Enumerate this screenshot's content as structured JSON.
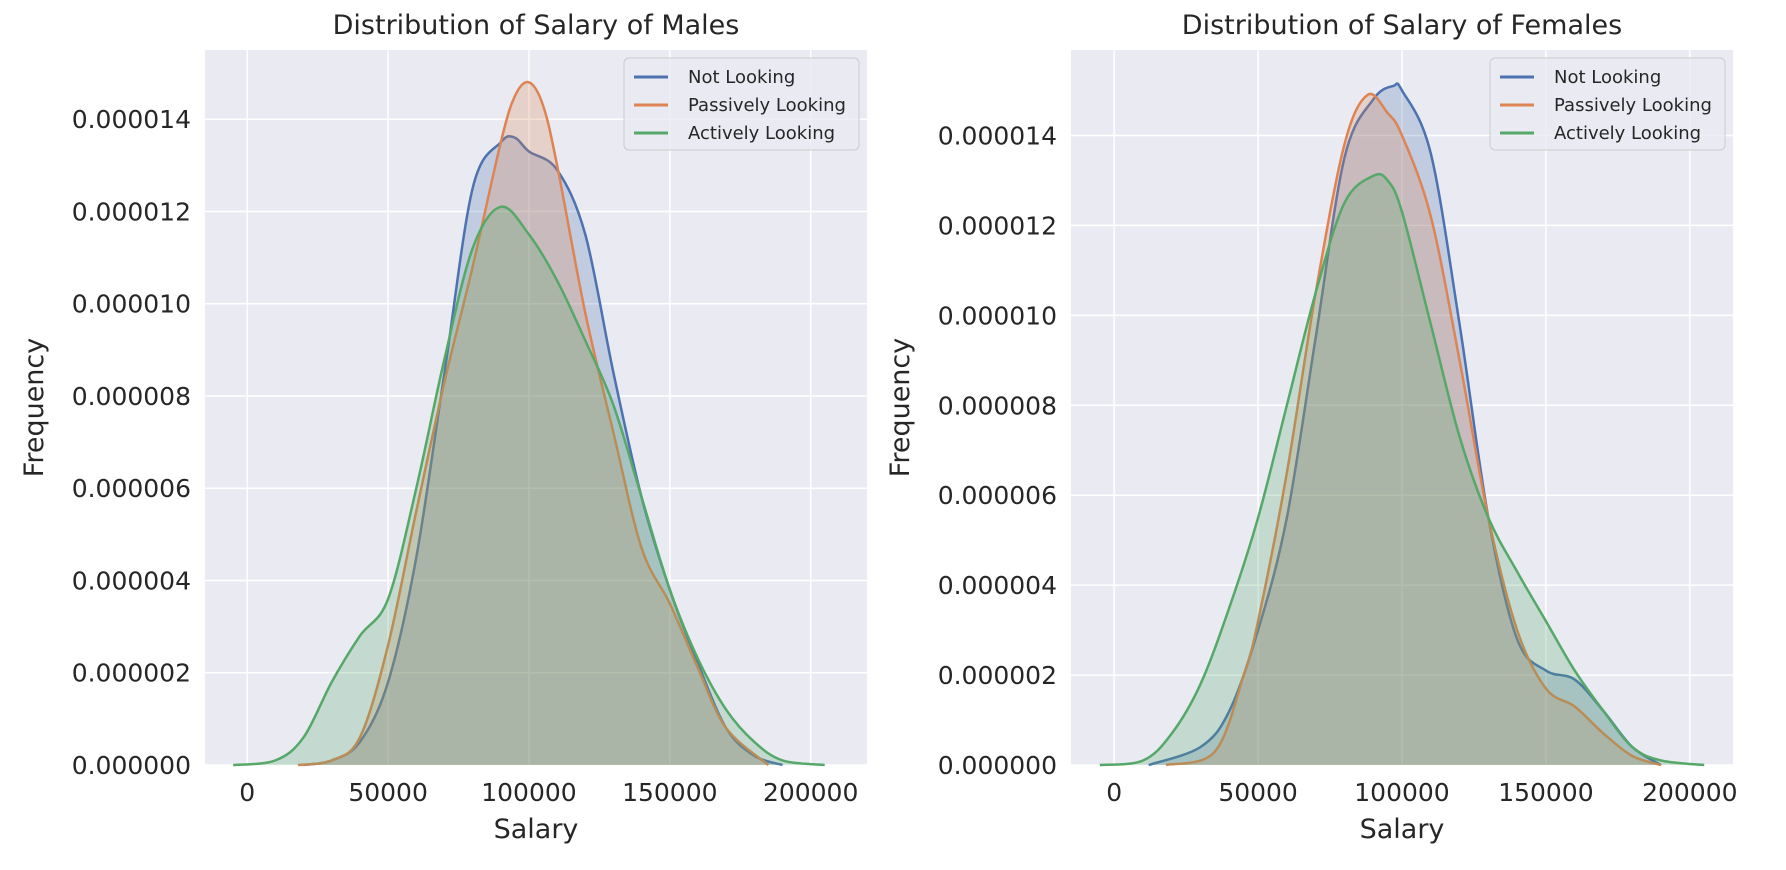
{
  "figure": {
    "background": "#ffffff",
    "axes_background": "#eaeaf2",
    "grid_color": "#ffffff"
  },
  "chart_data": [
    {
      "type": "area",
      "title": "Distribution of Salary of Males",
      "xlabel": "Salary",
      "ylabel": "Frequency",
      "xlim": [
        -15000,
        220000
      ],
      "ylim": [
        0,
        1.55e-05
      ],
      "xticks": [
        0,
        50000,
        100000,
        150000,
        200000
      ],
      "xtick_labels": [
        "0",
        "50000",
        "100000",
        "150000",
        "200000"
      ],
      "yticks": [
        0,
        2e-06,
        4e-06,
        6e-06,
        8e-06,
        1e-05,
        1.2e-05,
        1.4e-05
      ],
      "ytick_labels": [
        "0.000000",
        "0.000002",
        "0.000004",
        "0.000006",
        "0.000008",
        "0.000010",
        "0.000012",
        "0.000014"
      ],
      "grid": true,
      "legend_position": "top-right",
      "series": [
        {
          "name": "Not Looking",
          "color": "#4c72b0",
          "x": [
            20000,
            30000,
            40000,
            50000,
            60000,
            70000,
            80000,
            90000,
            95000,
            100000,
            110000,
            120000,
            130000,
            140000,
            150000,
            160000,
            170000,
            180000,
            190000
          ],
          "y": [
            0,
            1e-07,
            5e-07,
            1.8e-06,
            4.5e-06,
            8.5e-06,
            1.25e-05,
            1.35e-05,
            1.36e-05,
            1.33e-05,
            1.29e-05,
            1.15e-05,
            8.5e-06,
            5.8e-06,
            3.8e-06,
            2.2e-06,
            8e-07,
            2e-07,
            0
          ]
        },
        {
          "name": "Passively Looking",
          "color": "#dd8452",
          "x": [
            18000,
            30000,
            40000,
            50000,
            60000,
            70000,
            80000,
            90000,
            95000,
            100000,
            105000,
            110000,
            120000,
            130000,
            140000,
            150000,
            160000,
            170000,
            185000
          ],
          "y": [
            0,
            1e-07,
            6e-07,
            2.6e-06,
            5.5e-06,
            8.3e-06,
            1.08e-05,
            1.35e-05,
            1.45e-05,
            1.48e-05,
            1.43e-05,
            1.3e-05,
            9.8e-06,
            7.2e-06,
            4.7e-06,
            3.5e-06,
            2.1e-06,
            8e-07,
            0
          ]
        },
        {
          "name": "Actively Looking",
          "color": "#55a868",
          "x": [
            -5000,
            10000,
            20000,
            30000,
            40000,
            50000,
            60000,
            70000,
            80000,
            90000,
            100000,
            110000,
            120000,
            130000,
            140000,
            150000,
            160000,
            170000,
            180000,
            190000,
            205000
          ],
          "y": [
            0,
            1e-07,
            6e-07,
            1.8e-06,
            2.8e-06,
            3.6e-06,
            6e-06,
            8.8e-06,
            1.12e-05,
            1.21e-05,
            1.15e-05,
            1.05e-05,
            9.2e-06,
            7.8e-06,
            5.8e-06,
            3.8e-06,
            2.3e-06,
            1.2e-06,
            5e-07,
            1e-07,
            0
          ]
        }
      ]
    },
    {
      "type": "area",
      "title": "Distribution of Salary of Females",
      "xlabel": "Salary",
      "ylabel": "Frequency",
      "xlim": [
        -15000,
        215000
      ],
      "ylim": [
        0,
        1.59e-05
      ],
      "xticks": [
        0,
        50000,
        100000,
        150000,
        200000
      ],
      "xtick_labels": [
        "0",
        "50000",
        "100000",
        "150000",
        "200000"
      ],
      "yticks": [
        0,
        2e-06,
        4e-06,
        6e-06,
        8e-06,
        1e-05,
        1.2e-05,
        1.4e-05
      ],
      "ytick_labels": [
        "0.000000",
        "0.000002",
        "0.000004",
        "0.000006",
        "0.000008",
        "0.000010",
        "0.000012",
        "0.000014"
      ],
      "grid": true,
      "legend_position": "top-right",
      "series": [
        {
          "name": "Not Looking",
          "color": "#4c72b0",
          "x": [
            12000,
            30000,
            40000,
            50000,
            60000,
            70000,
            80000,
            90000,
            97000,
            100000,
            110000,
            120000,
            130000,
            140000,
            150000,
            160000,
            170000,
            180000,
            190000
          ],
          "y": [
            0,
            4e-07,
            1.2e-06,
            3e-06,
            5.5e-06,
            9.5e-06,
            1.35e-05,
            1.48e-05,
            1.51e-05,
            1.5e-05,
            1.36e-05,
            9.8e-06,
            5.5e-06,
            2.8e-06,
            2.1e-06,
            1.9e-06,
            1.2e-06,
            4e-07,
            0
          ]
        },
        {
          "name": "Passively Looking",
          "color": "#dd8452",
          "x": [
            18000,
            35000,
            45000,
            50000,
            60000,
            70000,
            80000,
            88000,
            95000,
            100000,
            110000,
            120000,
            130000,
            140000,
            150000,
            160000,
            170000,
            180000,
            190000
          ],
          "y": [
            0,
            3e-07,
            2e-06,
            3.2e-06,
            6.5e-06,
            1.05e-05,
            1.38e-05,
            1.49e-05,
            1.45e-05,
            1.4e-05,
            1.22e-05,
            9e-06,
            5.5e-06,
            3e-06,
            1.7e-06,
            1.3e-06,
            7e-07,
            2e-07,
            0
          ]
        },
        {
          "name": "Actively Looking",
          "color": "#55a868",
          "x": [
            -5000,
            10000,
            20000,
            30000,
            40000,
            50000,
            60000,
            70000,
            80000,
            90000,
            95000,
            100000,
            110000,
            120000,
            130000,
            140000,
            150000,
            160000,
            170000,
            180000,
            190000,
            205000
          ],
          "y": [
            0,
            1e-07,
            7e-07,
            1.8e-06,
            3.5e-06,
            5.5e-06,
            8e-06,
            1.05e-05,
            1.25e-05,
            1.31e-05,
            1.3e-05,
            1.23e-05,
            9.8e-06,
            7.3e-06,
            5.5e-06,
            4.3e-06,
            3.2e-06,
            2.1e-06,
            1.2e-06,
            4e-07,
            1e-07,
            0
          ]
        }
      ]
    }
  ]
}
